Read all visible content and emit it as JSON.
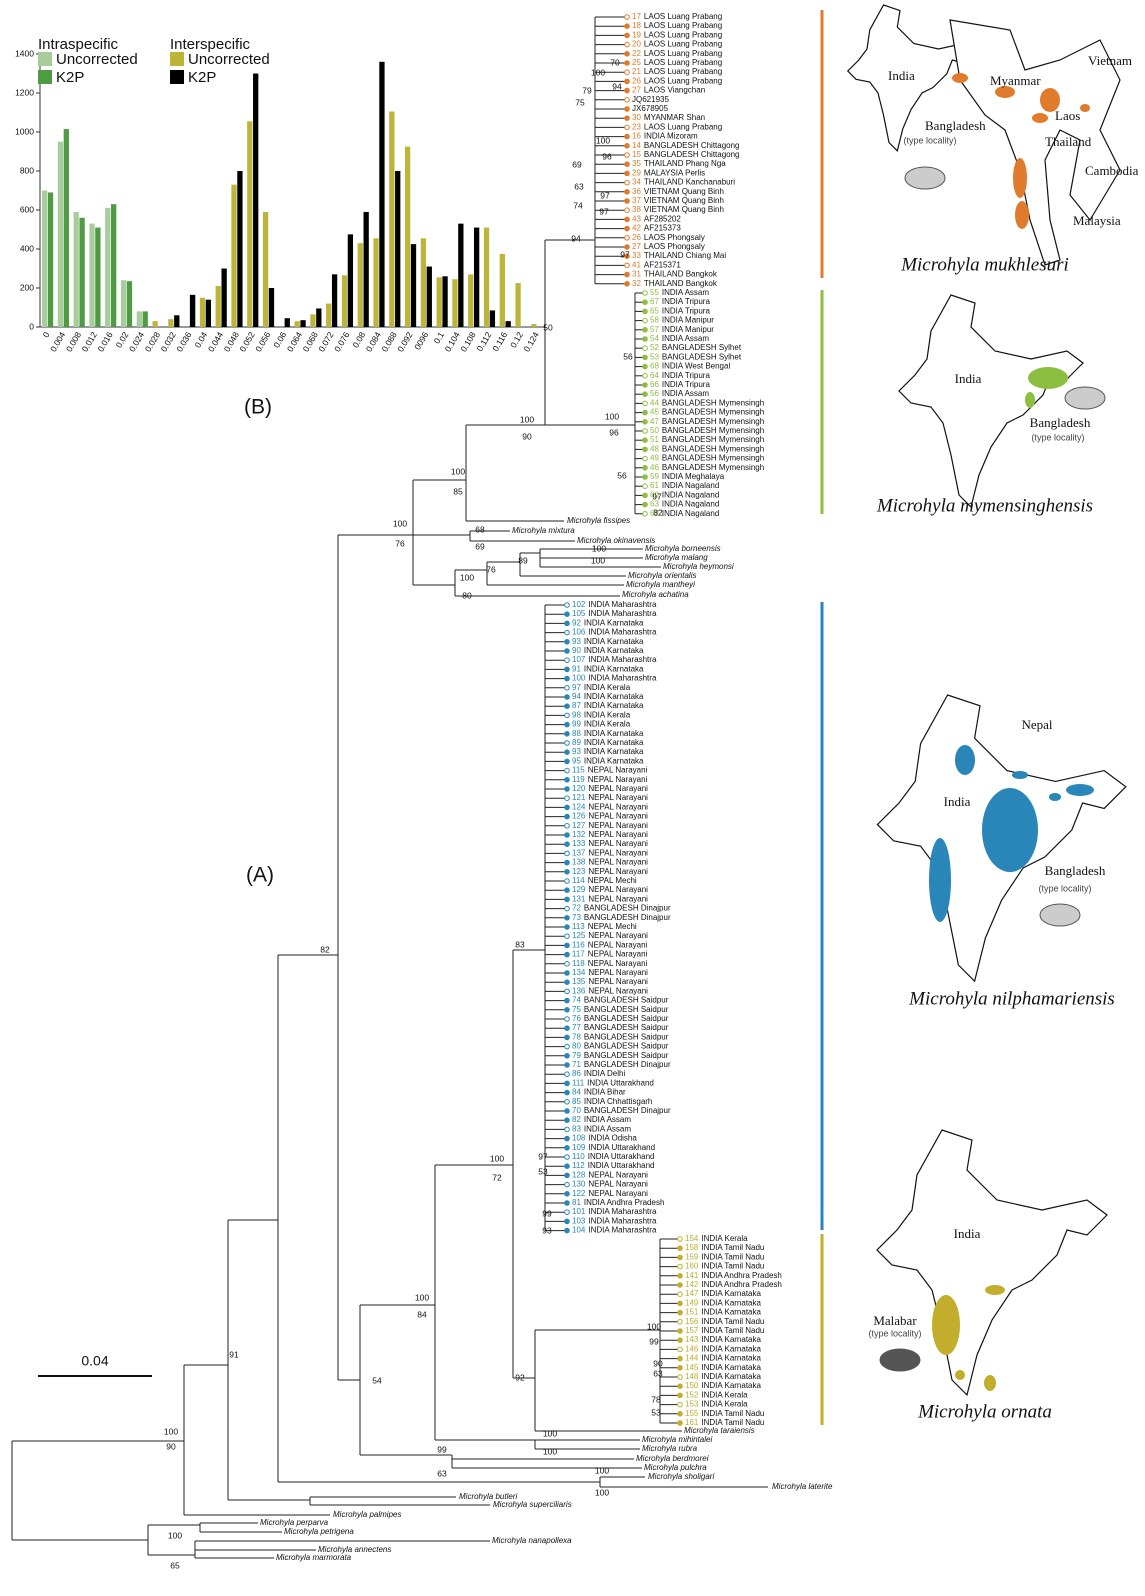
{
  "chart_data": {
    "type": "bar",
    "label": "(B)",
    "categories": [
      "0",
      "0.004",
      "0.008",
      "0.012",
      "0.016",
      "0.02",
      "0.024",
      "0.028",
      "0.032",
      "0.036",
      "0.04",
      "0.044",
      "0.048",
      "0.052",
      "0.056",
      "0.06",
      "0.064",
      "0.068",
      "0.072",
      "0.076",
      "0.08",
      "0.084",
      "0.088",
      "0.092",
      "0096",
      "0.1",
      "0.104",
      "0.108",
      "0.112",
      "0.116",
      "0.12",
      "0.124"
    ],
    "legend": [
      {
        "title": "Intraspecific"
      },
      {
        "title": "Interspecific"
      }
    ],
    "series": [
      {
        "name": "Uncorrected",
        "color": "#a8cc9c",
        "values": [
          700,
          950,
          590,
          530,
          610,
          240,
          80,
          0,
          0,
          0,
          0,
          0,
          0,
          0,
          0,
          0,
          0,
          0,
          0,
          0,
          0,
          0,
          0,
          0,
          0,
          0,
          0,
          0,
          0,
          0,
          0,
          0
        ]
      },
      {
        "name": "K2P",
        "color": "#4e9b43",
        "values": [
          690,
          1015,
          560,
          510,
          630,
          235,
          80,
          0,
          0,
          160,
          0,
          0,
          0,
          0,
          0,
          0,
          0,
          0,
          0,
          0,
          0,
          0,
          0,
          0,
          0,
          0,
          0,
          0,
          0,
          0,
          0,
          0
        ]
      },
      {
        "name": "Uncorrected",
        "color": "#bdb53a",
        "values": [
          0,
          0,
          0,
          0,
          0,
          0,
          0,
          30,
          40,
          0,
          150,
          210,
          730,
          1055,
          590,
          0,
          30,
          65,
          120,
          265,
          430,
          455,
          1105,
          925,
          455,
          255,
          245,
          270,
          510,
          375,
          225,
          15
        ]
      },
      {
        "name": "K2P",
        "color": "#000000",
        "values": [
          0,
          0,
          0,
          0,
          0,
          0,
          0,
          0,
          60,
          165,
          140,
          300,
          800,
          1300,
          200,
          45,
          35,
          95,
          270,
          475,
          590,
          1360,
          800,
          425,
          310,
          260,
          530,
          510,
          85,
          30,
          0,
          0
        ]
      }
    ],
    "ylim": [
      0,
      1400
    ],
    "yticks": [
      0,
      200,
      400,
      600,
      800,
      1000,
      1200,
      1400
    ],
    "grid": false
  },
  "tree": {
    "label": "(A)",
    "scale": "0.04",
    "clades": [
      {
        "color": "#e07b2c",
        "tips": [
          [
            "17",
            "LAOS Luang Prabang"
          ],
          [
            "18",
            "LAOS Luang Prabang"
          ],
          [
            "19",
            "LAOS Luang Prabang"
          ],
          [
            "20",
            "LAOS Luang Prabang"
          ],
          [
            "22",
            "LAOS Luang Prabang"
          ],
          [
            "25",
            "LAOS Luang Prabang"
          ],
          [
            "21",
            "LAOS Luang Prabang"
          ],
          [
            "26",
            "LAOS Luang Prabang"
          ],
          [
            "27",
            "LAOS Viangchan"
          ],
          [
            "JQ621935"
          ],
          [
            "JX678905"
          ],
          [
            "30",
            "MYANMAR Shan"
          ],
          [
            "23",
            "LAOS Luang Prabang"
          ],
          [
            "16",
            "INDIA Mizoram"
          ],
          [
            "14",
            "BANGLADESH Chittagong"
          ],
          [
            "15",
            "BANGLADESH Chittagong"
          ],
          [
            "35",
            "THAILAND Phang Nga"
          ],
          [
            "29",
            "MALAYSIA Perlis"
          ],
          [
            "34",
            "THAILAND Kanchanaburi"
          ],
          [
            "36",
            "VIETNAM Quang Binh"
          ],
          [
            "37",
            "VIETNAM Quang Binh"
          ],
          [
            "38",
            "VIETNAM Quang Binh"
          ],
          [
            "43",
            "AF285202"
          ],
          [
            "42",
            "AF215373"
          ],
          [
            "26",
            "LAOS Phongsaly"
          ],
          [
            "27",
            "LAOS Phongsaly"
          ],
          [
            "33",
            "THAILAND Chiang Mai"
          ],
          [
            "41",
            "AF215371"
          ],
          [
            "31",
            "THAILAND Bangkok"
          ],
          [
            "32",
            "THAILAND Bangkok"
          ]
        ]
      },
      {
        "color": "#8cbf3f",
        "tips": [
          [
            "55",
            "INDIA Assam"
          ],
          [
            "67",
            "INDIA Tripura"
          ],
          [
            "65",
            "INDIA Tripura"
          ],
          [
            "58",
            "INDIA Manipur"
          ],
          [
            "57",
            "INDIA Manipur"
          ],
          [
            "54",
            "INDIA Assam"
          ],
          [
            "52",
            "BANGLADESH Sylhet"
          ],
          [
            "53",
            "BANGLADESH Sylhet"
          ],
          [
            "68",
            "INDIA West Bengal"
          ],
          [
            "64",
            "INDIA Tripura"
          ],
          [
            "66",
            "INDIA Tripura"
          ],
          [
            "56",
            "INDIA Assam"
          ],
          [
            "44",
            "BANGLADESH Mymensingh"
          ],
          [
            "45",
            "BANGLADESH Mymensingh"
          ],
          [
            "47",
            "BANGLADESH Mymensingh"
          ],
          [
            "50",
            "BANGLADESH Mymensingh"
          ],
          [
            "51",
            "BANGLADESH Mymensingh"
          ],
          [
            "48",
            "BANGLADESH Mymensingh"
          ],
          [
            "49",
            "BANGLADESH Mymensingh"
          ],
          [
            "46",
            "BANGLADESH Mymensingh"
          ],
          [
            "59",
            "INDIA Meghalaya"
          ],
          [
            "61",
            "INDIA Nagaland"
          ],
          [
            "60",
            "INDIA Nagaland"
          ],
          [
            "63",
            "INDIA Nagaland"
          ],
          [
            "62",
            "INDIA Nagaland"
          ]
        ]
      },
      {
        "color": "#2a86b8",
        "tips": [
          [
            "102",
            "INDIA Maharashtra"
          ],
          [
            "105",
            "INDIA Maharashtra"
          ],
          [
            "92",
            "INDIA Karnataka"
          ],
          [
            "106",
            "INDIA Maharashtra"
          ],
          [
            "93",
            "INDIA Karnataka"
          ],
          [
            "90",
            "INDIA Karnataka"
          ],
          [
            "107",
            "INDIA Maharashtra"
          ],
          [
            "91",
            "INDIA Karnataka"
          ],
          [
            "100",
            "INDIA Maharashtra"
          ],
          [
            "97",
            "INDIA Kerala"
          ],
          [
            "94",
            "INDIA Karnataka"
          ],
          [
            "87",
            "INDIA Karnataka"
          ],
          [
            "98",
            "INDIA Kerala"
          ],
          [
            "99",
            "INDIA Kerala"
          ],
          [
            "88",
            "INDIA Karnataka"
          ],
          [
            "89",
            "INDIA Karnataka"
          ],
          [
            "93",
            "INDIA Karnataka"
          ],
          [
            "95",
            "INDIA Karnataka"
          ],
          [
            "115",
            "NEPAL Narayani"
          ],
          [
            "119",
            "NEPAL Narayani"
          ],
          [
            "120",
            "NEPAL Narayani"
          ],
          [
            "121",
            "NEPAL Narayani"
          ],
          [
            "124",
            "NEPAL Narayani"
          ],
          [
            "126",
            "NEPAL Narayani"
          ],
          [
            "127",
            "NEPAL Narayani"
          ],
          [
            "132",
            "NEPAL Narayani"
          ],
          [
            "133",
            "NEPAL Narayani"
          ],
          [
            "137",
            "NEPAL Narayani"
          ],
          [
            "138",
            "NEPAL Narayani"
          ],
          [
            "123",
            "NEPAL Narayani"
          ],
          [
            "114",
            "NEPAL Mechi"
          ],
          [
            "129",
            "NEPAL Narayani"
          ],
          [
            "131",
            "NEPAL Narayani"
          ],
          [
            "72",
            "BANGLADESH Dinajpur"
          ],
          [
            "73",
            "BANGLADESH Dinajpur"
          ],
          [
            "113",
            "NEPAL Mechi"
          ],
          [
            "125",
            "NEPAL Narayani"
          ],
          [
            "116",
            "NEPAL Narayani"
          ],
          [
            "117",
            "NEPAL Narayani"
          ],
          [
            "118",
            "NEPAL Narayani"
          ],
          [
            "134",
            "NEPAL Narayani"
          ],
          [
            "135",
            "NEPAL Narayani"
          ],
          [
            "136",
            "NEPAL Narayani"
          ],
          [
            "74",
            "BANGLADESH Saidpur"
          ],
          [
            "75",
            "BANGLADESH Saidpur"
          ],
          [
            "76",
            "BANGLADESH Saidpur"
          ],
          [
            "77",
            "BANGLADESH Saidpur"
          ],
          [
            "78",
            "BANGLADESH Saidpur"
          ],
          [
            "80",
            "BANGLADESH Saidpur"
          ],
          [
            "79",
            "BANGLADESH Saidpur"
          ],
          [
            "71",
            "BANGLADESH Dinajpur"
          ],
          [
            "86",
            "INDIA Delhi"
          ],
          [
            "111",
            "INDIA Uttarakhand"
          ],
          [
            "84",
            "INDIA Bihar"
          ],
          [
            "85",
            "INDIA Chhattisgarh"
          ],
          [
            "70",
            "BANGLADESH Dinajpur"
          ],
          [
            "82",
            "INDIA Assam"
          ],
          [
            "83",
            "INDIA Assam"
          ],
          [
            "108",
            "INDIA Odisha"
          ],
          [
            "109",
            "INDIA Uttarakhand"
          ],
          [
            "110",
            "INDIA Uttarakhand"
          ],
          [
            "112",
            "INDIA Uttarakhand"
          ],
          [
            "128",
            "NEPAL Narayani"
          ],
          [
            "130",
            "NEPAL Narayani"
          ],
          [
            "122",
            "NEPAL Narayani"
          ],
          [
            "81",
            "INDIA Andhra Pradesh"
          ],
          [
            "101",
            "INDIA Maharashtra"
          ],
          [
            "103",
            "INDIA Maharashtra"
          ],
          [
            "104",
            "INDIA Maharashtra"
          ]
        ]
      },
      {
        "color": "#c2ad2c",
        "tips": [
          [
            "154",
            "INDIA Kerala"
          ],
          [
            "158",
            "INDIA Tamil Nadu"
          ],
          [
            "159",
            "INDIA Tamil Nadu"
          ],
          [
            "160",
            "INDIA Tamil Nadu"
          ],
          [
            "141",
            "INDIA Andhra Pradesh"
          ],
          [
            "142",
            "INDIA Andhra Pradesh"
          ],
          [
            "147",
            "INDIA Karnataka"
          ],
          [
            "149",
            "INDIA Karnataka"
          ],
          [
            "151",
            "INDIA Karnataka"
          ],
          [
            "156",
            "INDIA Tamil Nadu"
          ],
          [
            "157",
            "INDIA Tamil Nadu"
          ],
          [
            "143",
            "INDIA Karnataka"
          ],
          [
            "146",
            "INDIA Karnataka"
          ],
          [
            "144",
            "INDIA Karnataka"
          ],
          [
            "145",
            "INDIA Karnataka"
          ],
          [
            "148",
            "INDIA Karnataka"
          ],
          [
            "150",
            "INDIA Karnataka"
          ],
          [
            "152",
            "INDIA Kerala"
          ],
          [
            "153",
            "INDIA Kerala"
          ],
          [
            "155",
            "INDIA Tamil Nadu"
          ],
          [
            "161",
            "INDIA Tamil Nadu"
          ]
        ]
      }
    ],
    "species": [
      "Microhyla fissipes",
      "Microhyla mixtura",
      "Microhyla okinavensis",
      "Microhyla borneensis",
      "Microhyla malang",
      "Microhyla heymonsi",
      "Microhyla orientalis",
      "Microhyla mantheyi",
      "Microhyla achatina",
      "Microhyla taraiensis",
      "Microhyla mihintalei",
      "Microhyla rubra",
      "Microhyla berdmorei",
      "Microhyla pulchra",
      "Microhyla sholigari",
      "Microhyla laterite",
      "Microhyla butleri",
      "Microhyla superciliaris",
      "Microhyla palmipes",
      "Microhyla perparva",
      "Microhyla petrigena",
      "Microhyla nanapollexa",
      "Microhyla annectens",
      "Microhyla marmorata"
    ],
    "supports": [
      "70",
      "100",
      "94",
      "79",
      "75",
      "100",
      "96",
      "69",
      "63",
      "97",
      "74",
      "97",
      "94",
      "97",
      "50",
      "56",
      "100",
      "96",
      "56",
      "97",
      "82",
      "100",
      "90",
      "100",
      "85",
      "100",
      "76",
      "68",
      "69",
      "100",
      "100",
      "89",
      "76",
      "100",
      "80",
      "82",
      "83",
      "100",
      "72",
      "97",
      "53",
      "99",
      "93",
      "100",
      "84",
      "100",
      "99",
      "90",
      "63",
      "78",
      "53",
      "92",
      "54",
      "100",
      "100",
      "99",
      "63",
      "100",
      "100",
      "91",
      "100",
      "90",
      "100",
      "65"
    ]
  },
  "maps": [
    {
      "species": "Microhyla mukhlesuri",
      "places": [
        "India",
        "Myanmar",
        "Vietnam",
        "Laos",
        "Thailand",
        "Cambodia",
        "Malaysia",
        "Bangladesh",
        "(type locality)"
      ]
    },
    {
      "species": "Microhyla mymensinghensis",
      "places": [
        "India",
        "Bangladesh",
        "(type locality)"
      ]
    },
    {
      "species": "Microhyla nilphamariensis",
      "places": [
        "Nepal",
        "India",
        "Bangladesh",
        "(type locality)"
      ]
    },
    {
      "species": "Microhyla ornata",
      "places": [
        "India",
        "Malabar",
        "(type locality)"
      ]
    }
  ]
}
